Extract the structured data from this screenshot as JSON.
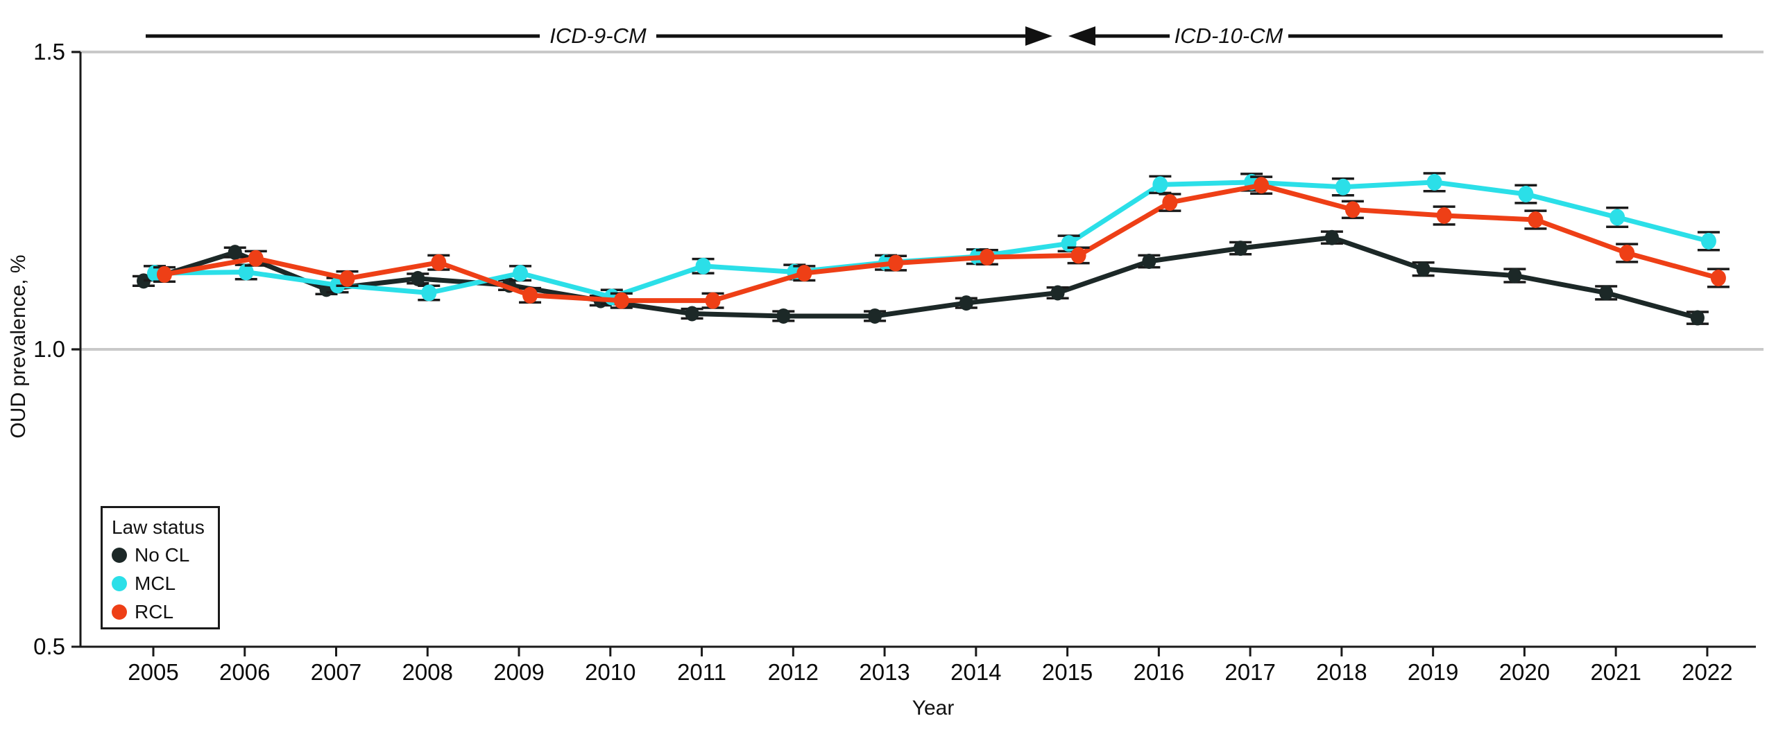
{
  "figure": {
    "y_axis": {
      "label": "OUD prevalence, %",
      "tick_labels": [
        "1.5",
        "1.0",
        "0.5"
      ]
    },
    "x_axis": {
      "label": "Year"
    },
    "annotations": {
      "icd9_label": "ICD-9-CM",
      "icd10_label": "ICD-10-CM"
    },
    "legend": {
      "title": "Law status"
    },
    "colors": {
      "axis": "#1a1a1a",
      "gridline": "#c9c9c9",
      "error_bar": "#1a1a1a"
    }
  },
  "chart_data": {
    "type": "line",
    "title": "",
    "xlabel": "Year",
    "ylabel": "OUD prevalence, %",
    "x": [
      2005,
      2006,
      2007,
      2008,
      2009,
      2010,
      2011,
      2012,
      2013,
      2014,
      2015,
      2016,
      2017,
      2018,
      2019,
      2020,
      2021,
      2022
    ],
    "ylim": [
      0.5,
      1.5
    ],
    "yticks": [
      0.5,
      1.0,
      1.5
    ],
    "grid_yticks": [
      1.0,
      1.5
    ],
    "grid": "horizontal gray lines at 1.0 and 1.5 only",
    "legend_title": "Law status",
    "legend_position": "lower left",
    "error_bar_color": "#1a1a1a",
    "coding_era_annotations": [
      {
        "text": "ICD-9-CM",
        "applies_to_years": "2005 through 2015",
        "arrow_direction": "right"
      },
      {
        "text": "ICD-10-CM",
        "applies_to_years": "2015 through 2022",
        "arrow_direction": "left"
      }
    ],
    "series": [
      {
        "name": "No CL",
        "color": "#1c2827",
        "marker": "circle",
        "values": [
          1.115,
          1.163,
          1.101,
          1.119,
          1.108,
          1.082,
          1.06,
          1.056,
          1.056,
          1.078,
          1.095,
          1.148,
          1.17,
          1.188,
          1.135,
          1.124,
          1.095,
          1.053
        ],
        "errors": [
          0.008,
          0.008,
          0.008,
          0.008,
          0.008,
          0.008,
          0.008,
          0.008,
          0.008,
          0.008,
          0.009,
          0.01,
          0.01,
          0.01,
          0.011,
          0.011,
          0.011,
          0.01
        ]
      },
      {
        "name": "MCL",
        "color": "#2bdfe8",
        "marker": "circle",
        "values": [
          1.128,
          1.13,
          1.108,
          1.095,
          1.128,
          1.088,
          1.14,
          1.13,
          1.146,
          1.156,
          1.178,
          1.277,
          1.281,
          1.273,
          1.281,
          1.261,
          1.222,
          1.182
        ],
        "errors": [
          0.012,
          0.012,
          0.012,
          0.012,
          0.012,
          0.012,
          0.012,
          0.012,
          0.012,
          0.012,
          0.013,
          0.014,
          0.014,
          0.014,
          0.015,
          0.015,
          0.016,
          0.015
        ]
      },
      {
        "name": "RCL",
        "color": "#ee3f16",
        "marker": "circle",
        "values": [
          1.126,
          1.153,
          1.119,
          1.146,
          1.091,
          1.082,
          1.082,
          1.128,
          1.145,
          1.155,
          1.158,
          1.247,
          1.276,
          1.235,
          1.225,
          1.218,
          1.162,
          1.12
        ],
        "errors": [
          0.012,
          0.012,
          0.012,
          0.012,
          0.012,
          0.012,
          0.012,
          0.012,
          0.012,
          0.012,
          0.013,
          0.014,
          0.014,
          0.014,
          0.015,
          0.015,
          0.015,
          0.015
        ]
      }
    ]
  }
}
